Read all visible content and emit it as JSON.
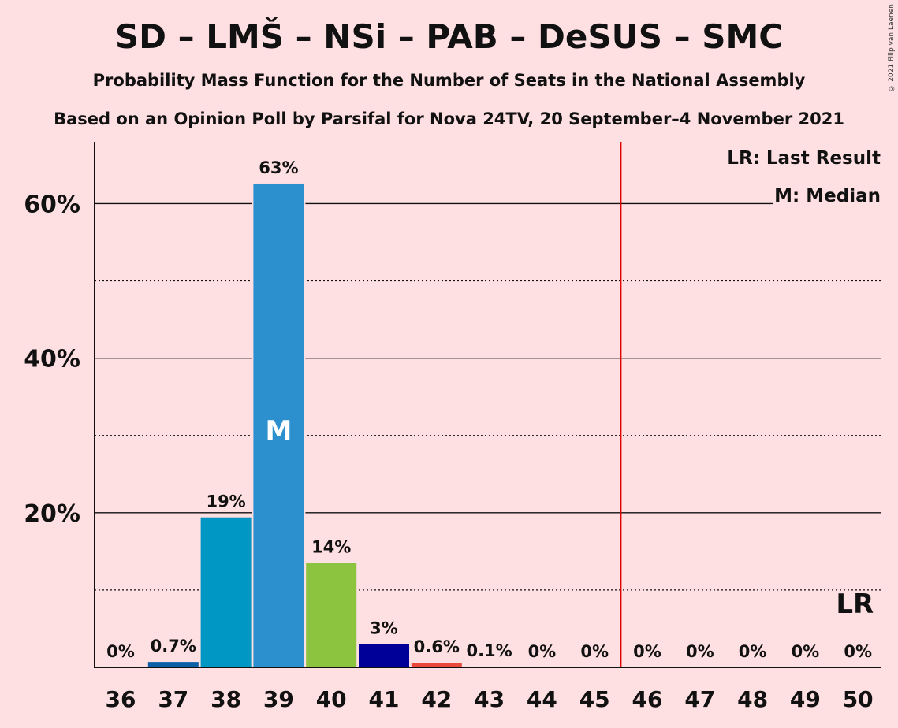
{
  "title": "SD – LMŠ – NSi – PAB – DeSUS – SMC",
  "subtitle": "Probability Mass Function for the Number of Seats in the National Assembly",
  "subtitle2": "Based on an Opinion Poll by Parsifal for Nova 24TV, 20 September–4 November 2021",
  "copyright": "© 2021 Filip van Laenen",
  "chart_data": {
    "type": "bar",
    "categories": [
      "36",
      "37",
      "38",
      "39",
      "40",
      "41",
      "42",
      "43",
      "44",
      "45",
      "46",
      "47",
      "48",
      "49",
      "50"
    ],
    "values": [
      0,
      0.7,
      19.4,
      62.6,
      13.5,
      3.0,
      0.6,
      0.1,
      0,
      0,
      0,
      0,
      0,
      0,
      0
    ],
    "labels": [
      "0%",
      "0.7%",
      "19%",
      "63%",
      "14%",
      "3%",
      "0.6%",
      "0.1%",
      "0%",
      "0%",
      "0%",
      "0%",
      "0%",
      "0%",
      "0%"
    ],
    "bar_colors": [
      "#2C8FCE",
      "#0B5FA5",
      "#0097C4",
      "#2C8FCE",
      "#8CC43F",
      "#000099",
      "#E8493B",
      "#2C8FCE",
      "#2C8FCE",
      "#2C8FCE",
      "#2C8FCE",
      "#2C8FCE",
      "#2C8FCE",
      "#2C8FCE",
      "#2C8FCE"
    ],
    "ylim": [
      0,
      68
    ],
    "yticks": [
      20,
      40,
      60
    ],
    "ytick_labels": [
      "20%",
      "40%",
      "60%"
    ],
    "minor_gridlines": [
      10,
      30,
      50
    ],
    "majority_line_between": [
      "45",
      "46"
    ],
    "majority_line_color": "#E00000",
    "median_seat": "39",
    "median_marker": "M",
    "last_result_seat": "50",
    "last_result_marker": "LR",
    "legend": [
      "LR: Last Result",
      "M: Median"
    ],
    "legend_position": "top-right"
  }
}
